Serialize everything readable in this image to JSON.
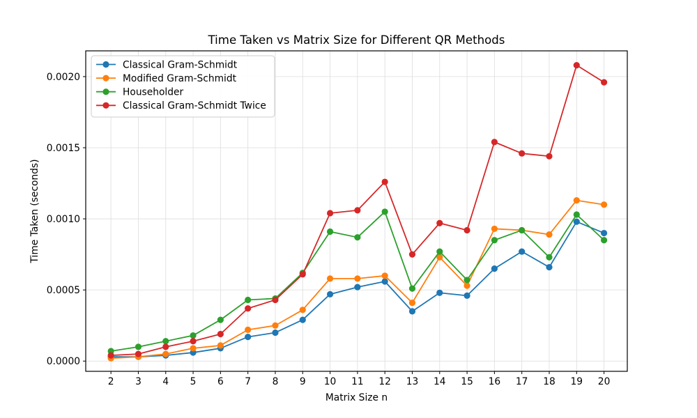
{
  "chart_data": {
    "type": "line",
    "title": "Time Taken vs Matrix Size for Different QR Methods",
    "xlabel": "Matrix Size n",
    "ylabel": "Time Taken (seconds)",
    "grid": true,
    "legend_position": "upper left",
    "x": [
      2,
      3,
      4,
      5,
      6,
      7,
      8,
      9,
      10,
      11,
      12,
      13,
      14,
      15,
      16,
      17,
      18,
      19,
      20
    ],
    "xticklabels": [
      "2",
      "3",
      "4",
      "5",
      "6",
      "7",
      "8",
      "9",
      "10",
      "11",
      "12",
      "13",
      "14",
      "15",
      "16",
      "17",
      "18",
      "19",
      "20"
    ],
    "yticks": [
      0.0,
      0.0005,
      0.001,
      0.0015,
      0.002
    ],
    "yticklabels": [
      "0.0000",
      "0.0005",
      "0.0010",
      "0.0015",
      "0.0020"
    ],
    "xlim": [
      1.08,
      20.85
    ],
    "ylim": [
      -7.2e-05,
      0.002181
    ],
    "series": [
      {
        "name": "Classical Gram-Schmidt",
        "color": "#1f77b4",
        "values": [
          3e-05,
          3e-05,
          4e-05,
          6e-05,
          9e-05,
          0.00017,
          0.0002,
          0.00029,
          0.00047,
          0.00052,
          0.00056,
          0.00035,
          0.00048,
          0.00046,
          0.00065,
          0.00077,
          0.00066,
          0.00098,
          0.0009
        ]
      },
      {
        "name": "Modified Gram-Schmidt",
        "color": "#ff7f0e",
        "values": [
          2e-05,
          3e-05,
          5e-05,
          9e-05,
          0.00011,
          0.00022,
          0.00025,
          0.00036,
          0.00058,
          0.00058,
          0.0006,
          0.00041,
          0.00073,
          0.00053,
          0.00093,
          0.00092,
          0.00089,
          0.00113,
          0.0011
        ]
      },
      {
        "name": "Householder",
        "color": "#2ca02c",
        "values": [
          7e-05,
          0.0001,
          0.00014,
          0.00018,
          0.00029,
          0.00043,
          0.00044,
          0.00062,
          0.00091,
          0.00087,
          0.00105,
          0.00051,
          0.00077,
          0.00057,
          0.00085,
          0.00092,
          0.00073,
          0.00103,
          0.00085
        ]
      },
      {
        "name": "Classical Gram-Schmidt Twice",
        "color": "#d62728",
        "values": [
          4e-05,
          5e-05,
          0.0001,
          0.00014,
          0.00019,
          0.00037,
          0.00043,
          0.00061,
          0.00104,
          0.00106,
          0.00126,
          0.00075,
          0.00097,
          0.00092,
          0.00154,
          0.00146,
          0.00144,
          0.00208,
          0.00196
        ]
      }
    ]
  },
  "style": {
    "grid_color": "#e0e0e0",
    "spine_color": "#000000",
    "legend_border_color": "#cccccc",
    "background": "#ffffff"
  }
}
